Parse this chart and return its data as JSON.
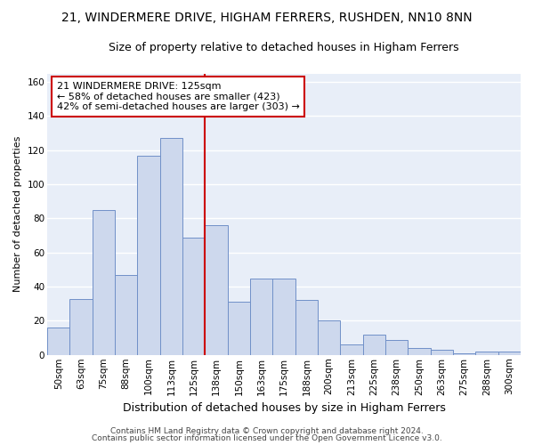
{
  "title": "21, WINDERMERE DRIVE, HIGHAM FERRERS, RUSHDEN, NN10 8NN",
  "subtitle": "Size of property relative to detached houses in Higham Ferrers",
  "xlabel": "Distribution of detached houses by size in Higham Ferrers",
  "ylabel": "Number of detached properties",
  "categories": [
    "50sqm",
    "63sqm",
    "75sqm",
    "88sqm",
    "100sqm",
    "113sqm",
    "125sqm",
    "138sqm",
    "150sqm",
    "163sqm",
    "175sqm",
    "188sqm",
    "200sqm",
    "213sqm",
    "225sqm",
    "238sqm",
    "250sqm",
    "263sqm",
    "275sqm",
    "288sqm",
    "300sqm"
  ],
  "values": [
    16,
    33,
    85,
    47,
    117,
    127,
    69,
    76,
    31,
    45,
    45,
    32,
    20,
    6,
    12,
    9,
    4,
    3,
    1,
    2,
    2
  ],
  "bar_color": "#cdd8ed",
  "bar_edge_color": "#7090c8",
  "highlight_index": 6,
  "highlight_line_color": "#cc0000",
  "annotation_text": "21 WINDERMERE DRIVE: 125sqm\n← 58% of detached houses are smaller (423)\n42% of semi-detached houses are larger (303) →",
  "annotation_box_facecolor": "#ffffff",
  "annotation_box_edgecolor": "#cc0000",
  "ylim": [
    0,
    165
  ],
  "yticks": [
    0,
    20,
    40,
    60,
    80,
    100,
    120,
    140,
    160
  ],
  "footer1": "Contains HM Land Registry data © Crown copyright and database right 2024.",
  "footer2": "Contains public sector information licensed under the Open Government Licence v3.0.",
  "fig_bg_color": "#ffffff",
  "plot_bg_color": "#e8eef8",
  "grid_color": "#ffffff",
  "title_fontsize": 10,
  "subtitle_fontsize": 9,
  "xlabel_fontsize": 9,
  "ylabel_fontsize": 8,
  "tick_fontsize": 7.5,
  "annotation_fontsize": 8,
  "footer_fontsize": 6.5
}
